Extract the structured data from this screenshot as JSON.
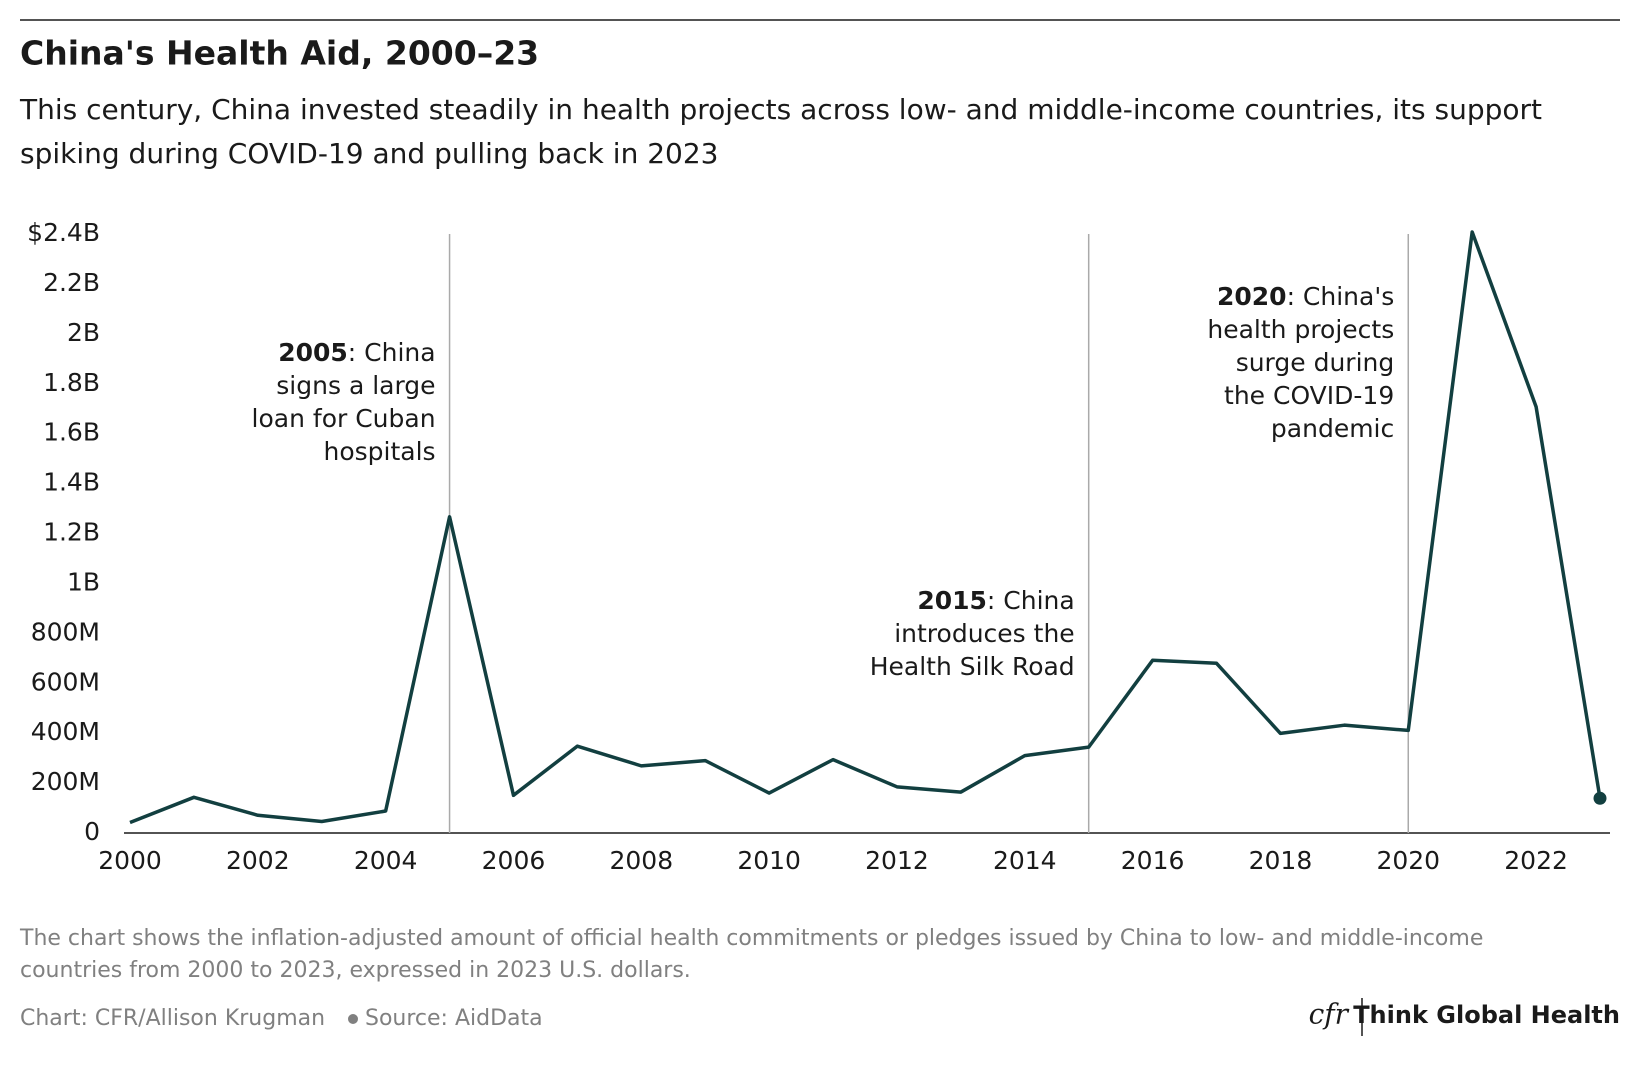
{
  "chart_data": {
    "type": "line",
    "title": "China's Health Aid, 2000–23",
    "subtitle": [
      "This century, China invested steadily in health projects across low- and middle-income countries, its support",
      "spiking during COVID-19 and pulling back in 2023"
    ],
    "x": [
      2000,
      2001,
      2002,
      2003,
      2004,
      2005,
      2006,
      2007,
      2008,
      2009,
      2010,
      2011,
      2012,
      2013,
      2014,
      2015,
      2016,
      2017,
      2018,
      2019,
      2020,
      2021,
      2022,
      2023
    ],
    "values": [
      42000000,
      143000000,
      71000000,
      46000000,
      88000000,
      1267000000,
      151000000,
      348000000,
      269000000,
      290000000,
      160000000,
      294000000,
      185000000,
      164000000,
      310000000,
      344000000,
      692000000,
      680000000,
      399000000,
      432000000,
      411000000,
      2408000000,
      1708000000,
      139000000
    ],
    "color": "#123f40",
    "xlim": [
      2000,
      2023
    ],
    "xticks": [
      2000,
      2002,
      2004,
      2006,
      2008,
      2010,
      2012,
      2014,
      2016,
      2018,
      2020,
      2022
    ],
    "ylim": [
      0,
      2400000000
    ],
    "yticks": [
      0,
      {
        "value": 200000000,
        "label": "200M"
      },
      {
        "value": 400000000,
        "label": "400M"
      },
      {
        "value": 600000000,
        "label": "600M"
      },
      {
        "value": 800000000,
        "label": "800M"
      },
      {
        "value": 1000000000,
        "label": "1B"
      },
      {
        "value": 1200000000,
        "label": "1.2B"
      },
      {
        "value": 1400000000,
        "label": "1.4B"
      },
      {
        "value": 1600000000,
        "label": "1.6B"
      },
      {
        "value": 1800000000,
        "label": "1.8B"
      },
      {
        "value": 2000000000,
        "label": "2B"
      },
      {
        "value": 2200000000,
        "label": "2.2B"
      },
      {
        "value": 2400000000,
        "label": "$2.4B"
      }
    ],
    "annotations": [
      {
        "x": 2005,
        "bold": "2005",
        "lines": [
          ": China",
          "signs a large",
          "loan for Cuban",
          "hospitals"
        ]
      },
      {
        "x": 2015,
        "bold": "2015",
        "lines": [
          ": China",
          "introduces the",
          "Health Silk Road"
        ]
      },
      {
        "x": 2020,
        "bold": "2020",
        "lines": [
          ": China's",
          "health projects",
          "surge during",
          "the COVID-19",
          "pandemic"
        ]
      }
    ],
    "note": [
      "The chart shows the inflation-adjusted amount of official health commitments or pledges issued by China to low- and middle-income",
      "countries from 2000 to 2023, expressed in 2023 U.S. dollars."
    ],
    "credit": "Chart: CFR/Allison Krugman",
    "source": "Source: AidData",
    "logo": "cfr",
    "brand": "Think Global Health"
  }
}
